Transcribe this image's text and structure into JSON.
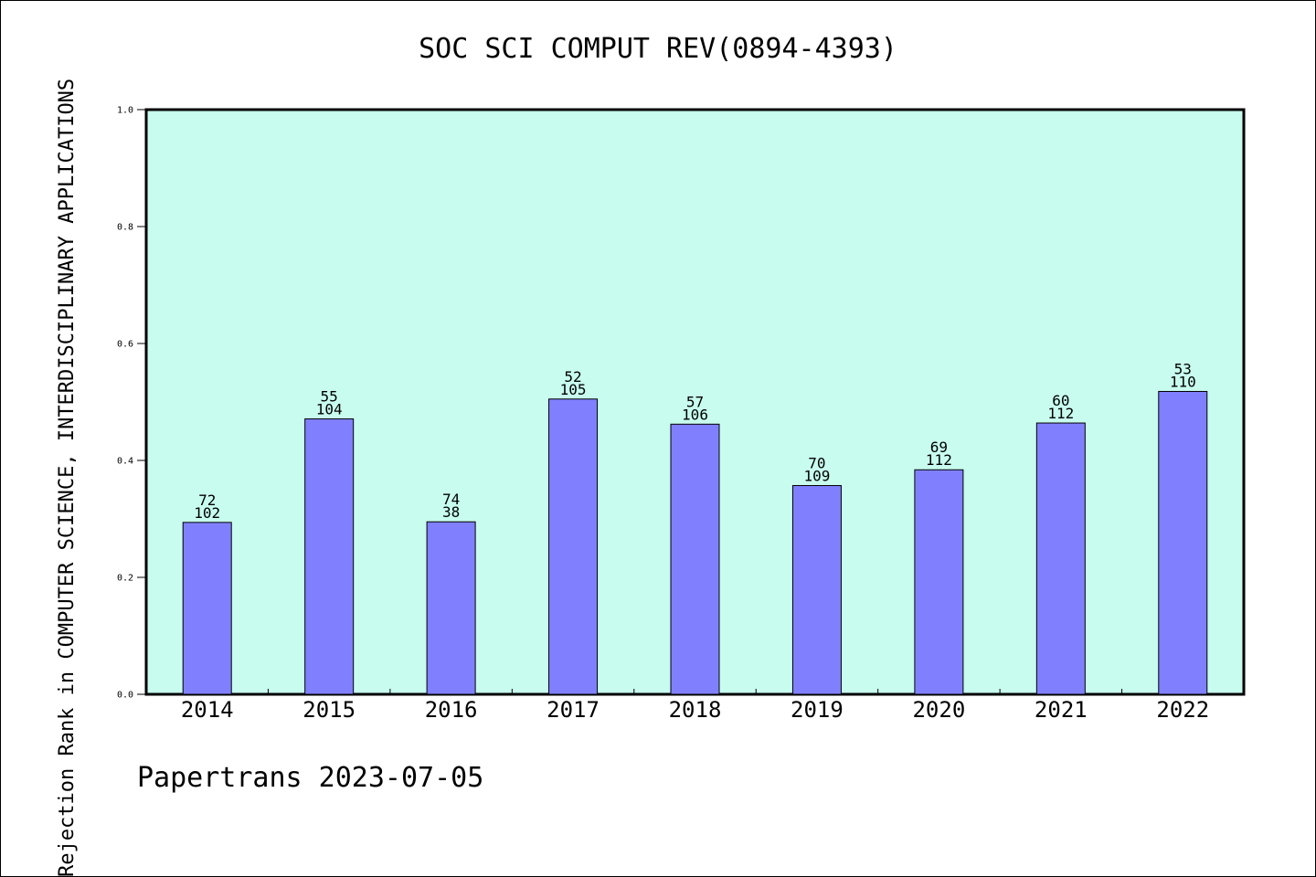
{
  "chart_data": {
    "type": "bar",
    "title": "SOC SCI COMPUT REV(0894-4393)",
    "ylabel": "Rejection Rank in COMPUTER SCIENCE,  INTERDISCIPLINARY APPLICATIONS",
    "xlabel": "",
    "categories": [
      "2014",
      "2015",
      "2016",
      "2017",
      "2018",
      "2019",
      "2020",
      "2021",
      "2022"
    ],
    "values": [
      0.294,
      0.471,
      0.295,
      0.505,
      0.462,
      0.357,
      0.384,
      0.464,
      0.518
    ],
    "label_top": [
      "72",
      "55",
      "74",
      "52",
      "57",
      "70",
      "69",
      "60",
      "53"
    ],
    "label_bottom": [
      "102",
      "104",
      "38",
      "105",
      "106",
      "109",
      "112",
      "112",
      "110"
    ],
    "ylim": [
      0,
      1.0
    ],
    "yticks": [
      "0.0",
      "0.2",
      "0.4",
      "0.6",
      "0.8",
      "1.0"
    ],
    "grid": false,
    "colors": {
      "plot_background": "#c8fcee",
      "bar_fill": "#8080ff",
      "bar_stroke": "#000000"
    }
  },
  "footer": "Papertrans 2023-07-05"
}
